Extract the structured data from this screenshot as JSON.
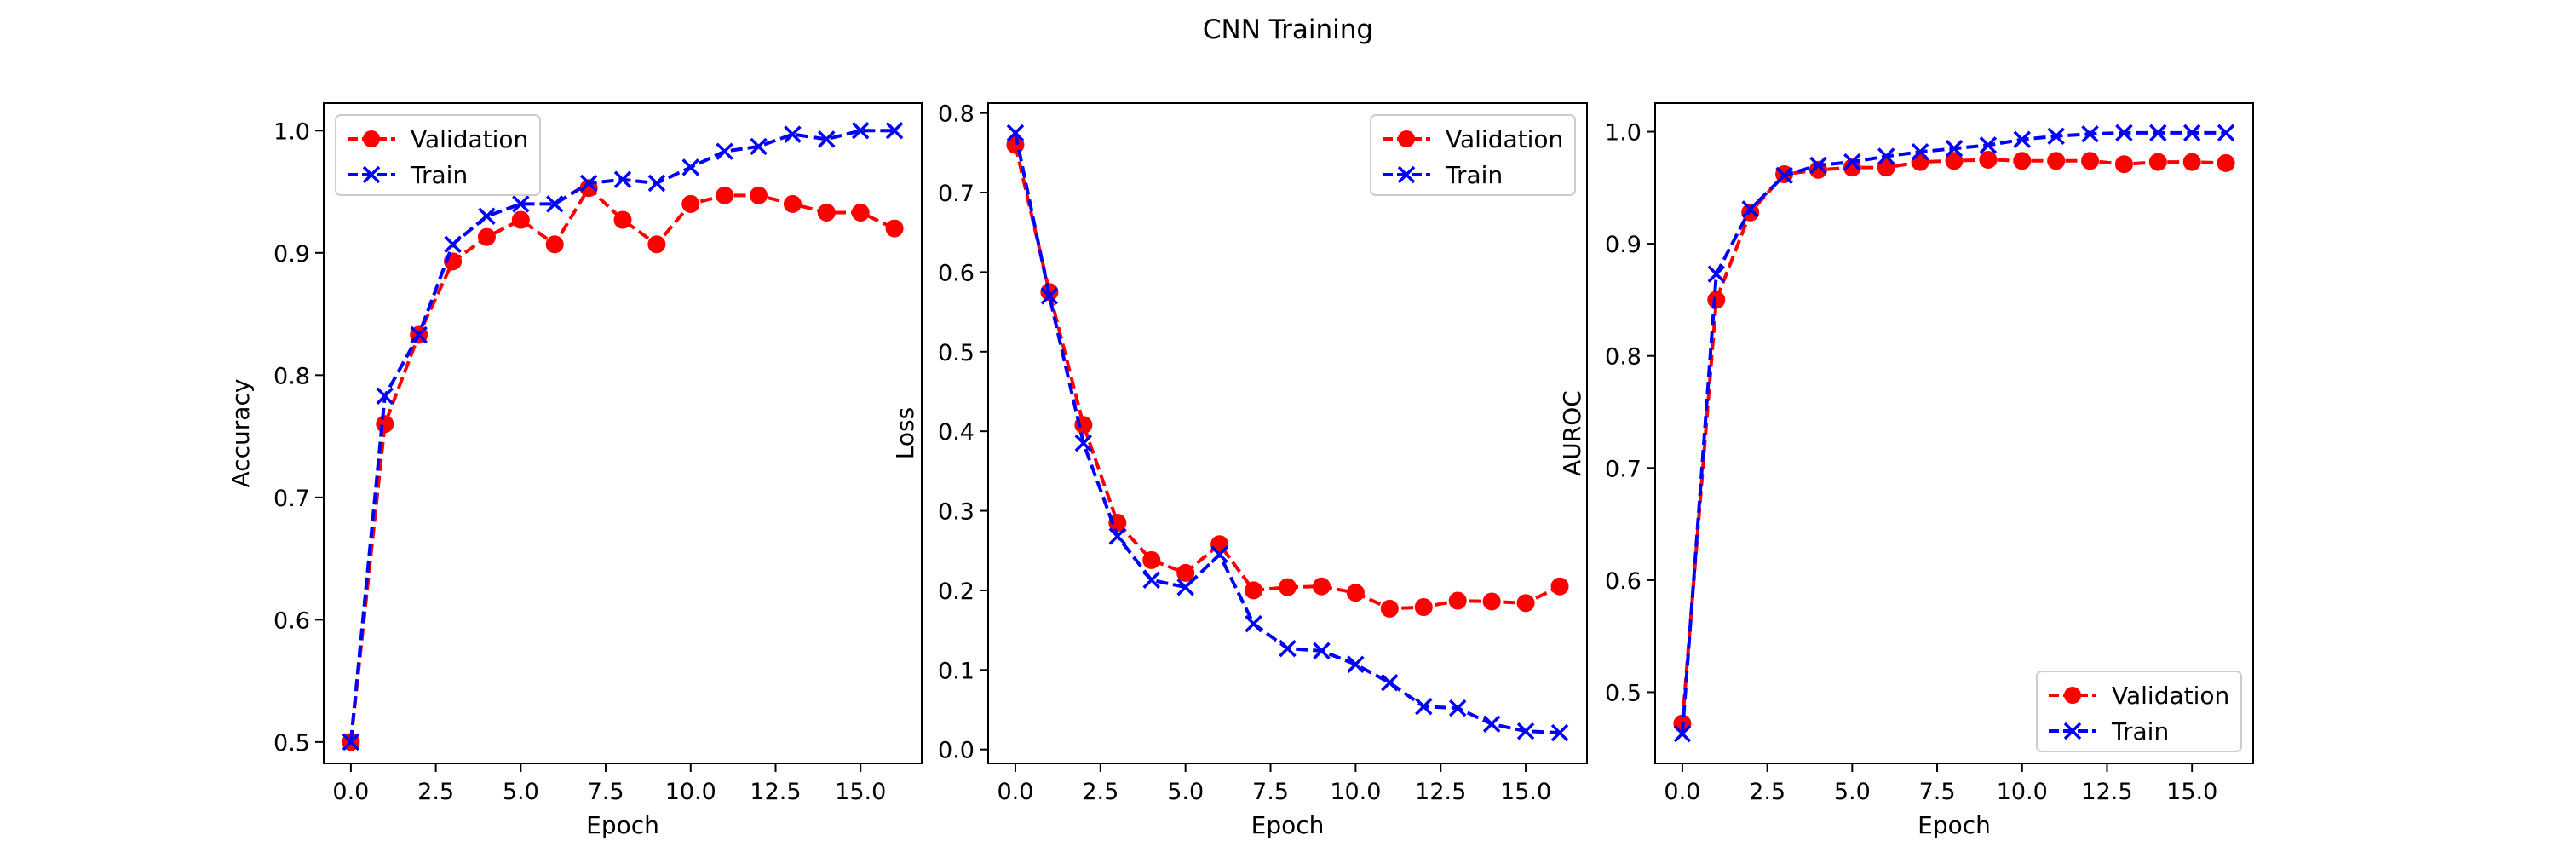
{
  "figure": {
    "title": "CNN Training"
  },
  "colors": {
    "validation": "#ff0000",
    "train": "#0000ff",
    "axes": "#000000",
    "legend_border": "#cccccc"
  },
  "chart_data": [
    {
      "type": "line",
      "title": "",
      "xlabel": "Epoch",
      "ylabel": "Accuracy",
      "xlim": [
        -0.8,
        16.8
      ],
      "ylim": [
        0.4825,
        1.0225
      ],
      "xticks": [
        0.0,
        2.5,
        5.0,
        7.5,
        10.0,
        12.5,
        15.0
      ],
      "xtick_labels": [
        "0.0",
        "2.5",
        "5.0",
        "7.5",
        "10.0",
        "12.5",
        "15.0"
      ],
      "yticks": [
        0.5,
        0.6,
        0.7,
        0.8,
        0.9,
        1.0
      ],
      "ytick_labels": [
        "0.5",
        "0.6",
        "0.7",
        "0.8",
        "0.9",
        "1.0"
      ],
      "grid": false,
      "legend_position": "upper-left",
      "x": [
        0,
        1,
        2,
        3,
        4,
        5,
        6,
        7,
        8,
        9,
        10,
        11,
        12,
        13,
        14,
        15,
        16
      ],
      "series": [
        {
          "name": "Validation",
          "marker": "circle",
          "linestyle": "dashed",
          "color": "#ff0000",
          "values": [
            0.5,
            0.76,
            0.833,
            0.893,
            0.913,
            0.927,
            0.907,
            0.953,
            0.927,
            0.907,
            0.94,
            0.947,
            0.947,
            0.94,
            0.933,
            0.933,
            0.92
          ]
        },
        {
          "name": "Train",
          "marker": "x",
          "linestyle": "dashed",
          "color": "#0000ff",
          "values": [
            0.5,
            0.783,
            0.833,
            0.907,
            0.93,
            0.94,
            0.94,
            0.957,
            0.96,
            0.957,
            0.97,
            0.983,
            0.987,
            0.997,
            0.993,
            1.0,
            1.0
          ]
        }
      ]
    },
    {
      "type": "line",
      "title": "",
      "xlabel": "Epoch",
      "ylabel": "Loss",
      "xlim": [
        -0.8,
        16.8
      ],
      "ylim": [
        -0.0175,
        0.8125
      ],
      "xticks": [
        0.0,
        2.5,
        5.0,
        7.5,
        10.0,
        12.5,
        15.0
      ],
      "xtick_labels": [
        "0.0",
        "2.5",
        "5.0",
        "7.5",
        "10.0",
        "12.5",
        "15.0"
      ],
      "yticks": [
        0.0,
        0.1,
        0.2,
        0.3,
        0.4,
        0.5,
        0.6,
        0.7,
        0.8
      ],
      "ytick_labels": [
        "0.0",
        "0.1",
        "0.2",
        "0.3",
        "0.4",
        "0.5",
        "0.6",
        "0.7",
        "0.8"
      ],
      "grid": false,
      "legend_position": "upper-right",
      "x": [
        0,
        1,
        2,
        3,
        4,
        5,
        6,
        7,
        8,
        9,
        10,
        11,
        12,
        13,
        14,
        15,
        16
      ],
      "series": [
        {
          "name": "Validation",
          "marker": "circle",
          "linestyle": "dashed",
          "color": "#ff0000",
          "values": [
            0.76,
            0.575,
            0.408,
            0.285,
            0.238,
            0.222,
            0.258,
            0.2,
            0.204,
            0.205,
            0.197,
            0.177,
            0.179,
            0.187,
            0.186,
            0.184,
            0.205
          ]
        },
        {
          "name": "Train",
          "marker": "x",
          "linestyle": "dashed",
          "color": "#0000ff",
          "values": [
            0.775,
            0.57,
            0.385,
            0.268,
            0.213,
            0.204,
            0.245,
            0.158,
            0.127,
            0.124,
            0.107,
            0.084,
            0.054,
            0.052,
            0.032,
            0.023,
            0.021
          ]
        }
      ]
    },
    {
      "type": "line",
      "title": "",
      "xlabel": "Epoch",
      "ylabel": "AUROC",
      "xlim": [
        -0.8,
        16.8
      ],
      "ylim": [
        0.4365,
        1.0255
      ],
      "xticks": [
        0.0,
        2.5,
        5.0,
        7.5,
        10.0,
        12.5,
        15.0
      ],
      "xtick_labels": [
        "0.0",
        "2.5",
        "5.0",
        "7.5",
        "10.0",
        "12.5",
        "15.0"
      ],
      "yticks": [
        0.5,
        0.6,
        0.7,
        0.8,
        0.9,
        1.0
      ],
      "ytick_labels": [
        "0.5",
        "0.6",
        "0.7",
        "0.8",
        "0.9",
        "1.0"
      ],
      "grid": false,
      "legend_position": "lower-right",
      "x": [
        0,
        1,
        2,
        3,
        4,
        5,
        6,
        7,
        8,
        9,
        10,
        11,
        12,
        13,
        14,
        15,
        16
      ],
      "series": [
        {
          "name": "Validation",
          "marker": "circle",
          "linestyle": "dashed",
          "color": "#ff0000",
          "values": [
            0.472,
            0.85,
            0.928,
            0.962,
            0.966,
            0.968,
            0.968,
            0.973,
            0.974,
            0.975,
            0.974,
            0.974,
            0.974,
            0.971,
            0.973,
            0.973,
            0.972
          ]
        },
        {
          "name": "Train",
          "marker": "x",
          "linestyle": "dashed",
          "color": "#0000ff",
          "values": [
            0.463,
            0.873,
            0.931,
            0.961,
            0.97,
            0.973,
            0.978,
            0.982,
            0.985,
            0.988,
            0.993,
            0.996,
            0.998,
            0.999,
            0.999,
            0.999,
            0.999
          ]
        }
      ]
    }
  ]
}
